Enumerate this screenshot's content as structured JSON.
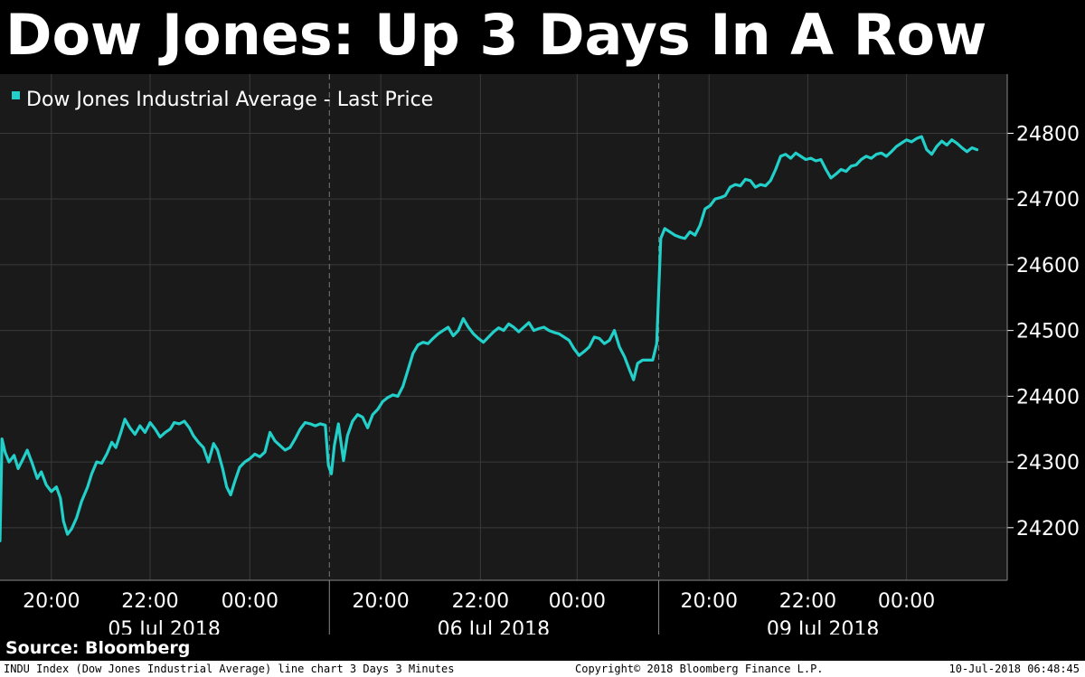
{
  "title": "Dow Jones: Up 3 Days In A Row",
  "source": "Source: Bloomberg",
  "footer": {
    "left": "INDU Index (Dow Jones Industrial Average) line chart 3 Days 3 Minutes",
    "center": "Copyright© 2018 Bloomberg Finance L.P.",
    "right": "10-Jul-2018 06:48:45"
  },
  "colors": {
    "background": "#000000",
    "plot_background": "#1a1a1a",
    "line": "#22cfc9",
    "grid": "#3a3a3a",
    "text": "#ffffff"
  },
  "chart_data": {
    "type": "line",
    "legend": "Dow Jones Industrial Average - Last Price",
    "legend_position": "top-left",
    "grid": true,
    "ylim": [
      24120,
      24890
    ],
    "yticks": [
      24200,
      24300,
      24400,
      24500,
      24600,
      24700,
      24800
    ],
    "ytick_labels": [
      "24200",
      "24300",
      "24400",
      "24500",
      "24600",
      "24700",
      "24800"
    ],
    "yaxis_side": "right",
    "xlim": [
      0,
      100
    ],
    "time_ticks": [
      {
        "x": 5.1,
        "label": "20:00"
      },
      {
        "x": 14.9,
        "label": "22:00"
      },
      {
        "x": 24.8,
        "label": "00:00"
      },
      {
        "x": 37.8,
        "label": "20:00"
      },
      {
        "x": 47.7,
        "label": "22:00"
      },
      {
        "x": 57.3,
        "label": "00:00"
      },
      {
        "x": 70.4,
        "label": "20:00"
      },
      {
        "x": 80.2,
        "label": "22:00"
      },
      {
        "x": 90.0,
        "label": "00:00"
      }
    ],
    "day_separators": [
      32.7,
      65.4
    ],
    "day_labels": [
      {
        "x": 16.3,
        "label": "05 Jul 2018"
      },
      {
        "x": 49.0,
        "label": "06 Jul 2018"
      },
      {
        "x": 81.7,
        "label": "09 Jul 2018"
      }
    ],
    "series": [
      {
        "name": "Dow Jones Industrial Average - Last Price",
        "points": [
          [
            0.0,
            24180
          ],
          [
            0.2,
            24335
          ],
          [
            0.5,
            24315
          ],
          [
            0.9,
            24300
          ],
          [
            1.4,
            24310
          ],
          [
            1.8,
            24290
          ],
          [
            2.3,
            24305
          ],
          [
            2.7,
            24318
          ],
          [
            3.2,
            24298
          ],
          [
            3.7,
            24275
          ],
          [
            4.1,
            24285
          ],
          [
            4.6,
            24265
          ],
          [
            5.1,
            24255
          ],
          [
            5.6,
            24262
          ],
          [
            6.0,
            24245
          ],
          [
            6.3,
            24210
          ],
          [
            6.7,
            24190
          ],
          [
            7.1,
            24198
          ],
          [
            7.6,
            24215
          ],
          [
            8.1,
            24240
          ],
          [
            8.7,
            24262
          ],
          [
            9.1,
            24282
          ],
          [
            9.6,
            24300
          ],
          [
            10.1,
            24298
          ],
          [
            10.6,
            24312
          ],
          [
            11.1,
            24330
          ],
          [
            11.5,
            24322
          ],
          [
            12.0,
            24345
          ],
          [
            12.4,
            24365
          ],
          [
            12.9,
            24352
          ],
          [
            13.4,
            24342
          ],
          [
            13.9,
            24355
          ],
          [
            14.4,
            24345
          ],
          [
            14.9,
            24360
          ],
          [
            15.4,
            24350
          ],
          [
            15.9,
            24338
          ],
          [
            16.4,
            24345
          ],
          [
            16.9,
            24350
          ],
          [
            17.3,
            24360
          ],
          [
            17.8,
            24358
          ],
          [
            18.3,
            24362
          ],
          [
            18.8,
            24352
          ],
          [
            19.2,
            24340
          ],
          [
            19.7,
            24330
          ],
          [
            20.2,
            24322
          ],
          [
            20.7,
            24300
          ],
          [
            21.2,
            24328
          ],
          [
            21.6,
            24318
          ],
          [
            22.1,
            24290
          ],
          [
            22.5,
            24262
          ],
          [
            22.9,
            24250
          ],
          [
            23.3,
            24270
          ],
          [
            23.8,
            24292
          ],
          [
            24.3,
            24300
          ],
          [
            24.8,
            24305
          ],
          [
            25.3,
            24312
          ],
          [
            25.8,
            24308
          ],
          [
            26.3,
            24315
          ],
          [
            26.8,
            24345
          ],
          [
            27.3,
            24332
          ],
          [
            27.8,
            24325
          ],
          [
            28.3,
            24318
          ],
          [
            28.8,
            24322
          ],
          [
            29.3,
            24335
          ],
          [
            29.8,
            24350
          ],
          [
            30.3,
            24360
          ],
          [
            30.8,
            24358
          ],
          [
            31.3,
            24355
          ],
          [
            31.8,
            24358
          ],
          [
            32.3,
            24356
          ],
          [
            32.6,
            24295
          ],
          [
            32.9,
            24282
          ],
          [
            33.2,
            24325
          ],
          [
            33.6,
            24358
          ],
          [
            34.1,
            24302
          ],
          [
            34.5,
            24340
          ],
          [
            35.0,
            24362
          ],
          [
            35.5,
            24372
          ],
          [
            36.0,
            24368
          ],
          [
            36.5,
            24352
          ],
          [
            37.0,
            24372
          ],
          [
            37.5,
            24380
          ],
          [
            38.0,
            24392
          ],
          [
            38.5,
            24398
          ],
          [
            39.0,
            24402
          ],
          [
            39.5,
            24400
          ],
          [
            40.0,
            24415
          ],
          [
            40.5,
            24440
          ],
          [
            41.0,
            24465
          ],
          [
            41.5,
            24478
          ],
          [
            42.0,
            24482
          ],
          [
            42.5,
            24480
          ],
          [
            43.0,
            24488
          ],
          [
            43.5,
            24495
          ],
          [
            44.0,
            24500
          ],
          [
            44.5,
            24505
          ],
          [
            45.0,
            24492
          ],
          [
            45.5,
            24500
          ],
          [
            46.0,
            24518
          ],
          [
            46.5,
            24505
          ],
          [
            47.0,
            24495
          ],
          [
            47.5,
            24488
          ],
          [
            48.0,
            24482
          ],
          [
            48.5,
            24490
          ],
          [
            49.0,
            24498
          ],
          [
            49.5,
            24504
          ],
          [
            50.0,
            24500
          ],
          [
            50.5,
            24510
          ],
          [
            51.0,
            24505
          ],
          [
            51.5,
            24498
          ],
          [
            52.0,
            24505
          ],
          [
            52.5,
            24512
          ],
          [
            53.0,
            24500
          ],
          [
            53.5,
            24503
          ],
          [
            54.0,
            24505
          ],
          [
            54.5,
            24500
          ],
          [
            55.0,
            24497
          ],
          [
            55.5,
            24495
          ],
          [
            56.0,
            24490
          ],
          [
            56.5,
            24485
          ],
          [
            57.0,
            24472
          ],
          [
            57.5,
            24462
          ],
          [
            58.0,
            24468
          ],
          [
            58.5,
            24475
          ],
          [
            59.0,
            24490
          ],
          [
            59.5,
            24488
          ],
          [
            60.0,
            24480
          ],
          [
            60.5,
            24485
          ],
          [
            61.0,
            24500
          ],
          [
            61.5,
            24475
          ],
          [
            62.0,
            24460
          ],
          [
            62.5,
            24440
          ],
          [
            62.9,
            24425
          ],
          [
            63.3,
            24450
          ],
          [
            63.8,
            24455
          ],
          [
            64.3,
            24455
          ],
          [
            64.8,
            24455
          ],
          [
            65.2,
            24480
          ],
          [
            65.6,
            24640
          ],
          [
            66.0,
            24655
          ],
          [
            66.5,
            24650
          ],
          [
            67.0,
            24645
          ],
          [
            67.5,
            24642
          ],
          [
            68.0,
            24640
          ],
          [
            68.5,
            24650
          ],
          [
            69.0,
            24645
          ],
          [
            69.5,
            24660
          ],
          [
            70.0,
            24685
          ],
          [
            70.5,
            24690
          ],
          [
            71.0,
            24700
          ],
          [
            71.5,
            24702
          ],
          [
            72.0,
            24705
          ],
          [
            72.5,
            24718
          ],
          [
            73.0,
            24722
          ],
          [
            73.5,
            24720
          ],
          [
            74.0,
            24730
          ],
          [
            74.5,
            24728
          ],
          [
            75.0,
            24718
          ],
          [
            75.5,
            24722
          ],
          [
            76.0,
            24720
          ],
          [
            76.5,
            24728
          ],
          [
            77.0,
            24745
          ],
          [
            77.5,
            24765
          ],
          [
            78.0,
            24768
          ],
          [
            78.5,
            24762
          ],
          [
            79.0,
            24770
          ],
          [
            79.5,
            24765
          ],
          [
            80.0,
            24760
          ],
          [
            80.5,
            24762
          ],
          [
            81.0,
            24758
          ],
          [
            81.5,
            24760
          ],
          [
            82.0,
            24745
          ],
          [
            82.5,
            24732
          ],
          [
            83.0,
            24738
          ],
          [
            83.5,
            24745
          ],
          [
            84.0,
            24742
          ],
          [
            84.5,
            24750
          ],
          [
            85.0,
            24752
          ],
          [
            85.5,
            24760
          ],
          [
            86.0,
            24765
          ],
          [
            86.5,
            24762
          ],
          [
            87.0,
            24768
          ],
          [
            87.5,
            24770
          ],
          [
            88.0,
            24765
          ],
          [
            88.5,
            24772
          ],
          [
            89.0,
            24780
          ],
          [
            89.5,
            24785
          ],
          [
            90.0,
            24790
          ],
          [
            90.5,
            24787
          ],
          [
            91.0,
            24792
          ],
          [
            91.5,
            24795
          ],
          [
            92.0,
            24775
          ],
          [
            92.5,
            24768
          ],
          [
            93.0,
            24780
          ],
          [
            93.5,
            24788
          ],
          [
            94.0,
            24782
          ],
          [
            94.5,
            24790
          ],
          [
            95.0,
            24785
          ],
          [
            95.5,
            24778
          ],
          [
            96.0,
            24772
          ],
          [
            96.5,
            24778
          ],
          [
            97.0,
            24775
          ]
        ]
      }
    ]
  }
}
